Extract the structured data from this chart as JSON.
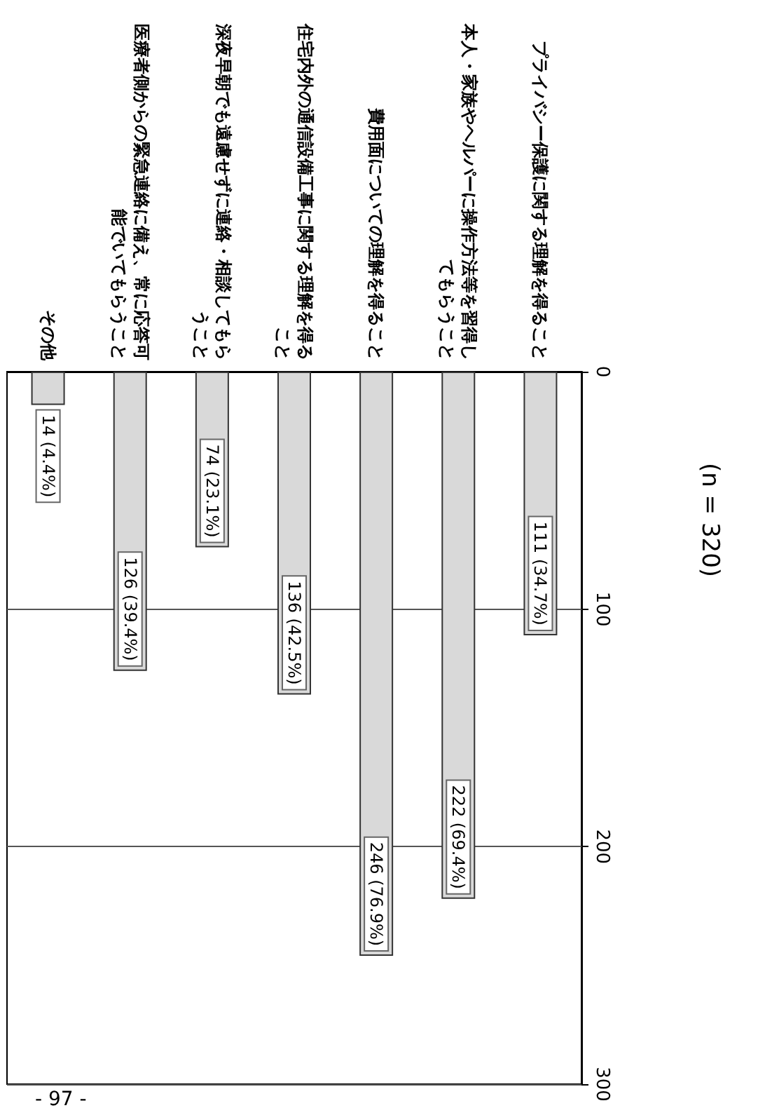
{
  "chart_data": {
    "type": "bar",
    "title": "(n = 320)",
    "categories": [
      "その他",
      "医療者側からの緊急連絡に備え、常に応答可能でいてもらうこと",
      "深夜早朝でも遠慮せずに連絡・相談してもらうこと",
      "住宅内外の通信設備工事に関する理解を得ること",
      "費用面についての理解を得ること",
      "本人・家族やヘルパーに操作方法等を習得してもらうこと",
      "プライバシー保護に関する理解を得ること"
    ],
    "values": [
      14,
      126,
      74,
      136,
      246,
      222,
      111
    ],
    "value_labels": [
      "14 (4.4%)",
      "126 (39.4%)",
      "74 (23.1%)",
      "136 (42.5%)",
      "246 (76.9%)",
      "222 (69.4%)",
      "111 (34.7%)"
    ],
    "color": "#d9d9d9",
    "ylim": [
      300,
      0
    ],
    "yticks": [
      0,
      100,
      200,
      300
    ],
    "grid": "y",
    "annotations": [
      "- 97 -"
    ]
  }
}
